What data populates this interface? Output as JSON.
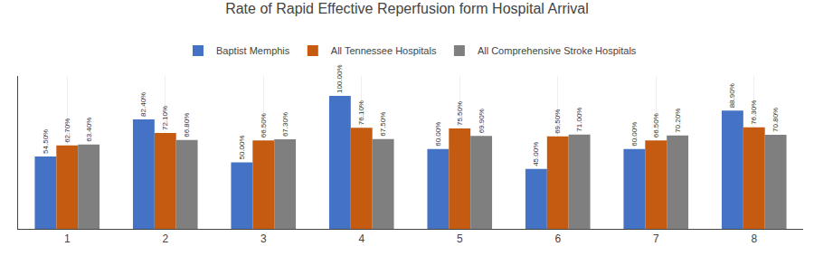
{
  "chart_data": {
    "type": "bar",
    "title": "Rate of Rapid Effective Reperfusion form Hospital Arrival",
    "categories": [
      1,
      2,
      3,
      4,
      5,
      6,
      7,
      8
    ],
    "series": [
      {
        "name": "Baptist Memphis",
        "color": "#4472C4",
        "values": [
          54.5,
          82.4,
          50.0,
          100.0,
          60.0,
          45.0,
          60.0,
          88.9
        ],
        "value_labels": [
          "54.50%",
          "82.40%",
          "50.00%",
          "100.00%",
          "60.00%",
          "45.00%",
          "60.00%",
          "88.90%"
        ]
      },
      {
        "name": "All Tennessee Hospitals",
        "color": "#C55A11",
        "values": [
          62.7,
          72.1,
          66.5,
          76.1,
          75.5,
          69.5,
          66.5,
          76.3
        ],
        "value_labels": [
          "62.70%",
          "72.10%",
          "66.50%",
          "76.10%",
          "75.50%",
          "69.50%",
          "66.50%",
          "76.30%"
        ]
      },
      {
        "name": "All Comprehensive Stroke Hospitals",
        "color": "#7F7F7F",
        "values": [
          63.4,
          66.8,
          67.3,
          67.5,
          69.9,
          71.0,
          70.2,
          70.8
        ],
        "value_labels": [
          "63.40%",
          "66.80%",
          "67.30%",
          "67.50%",
          "69.90%",
          "71.00%",
          "70.20%",
          "70.80%"
        ]
      }
    ],
    "ylim": [
      0,
      115
    ],
    "grid": true,
    "legend": "top",
    "data_labels": true,
    "tick_labels": "x"
  }
}
